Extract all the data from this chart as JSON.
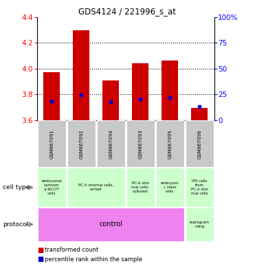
{
  "title": "GDS4124 / 221996_s_at",
  "samples": [
    "GSM867091",
    "GSM867092",
    "GSM867094",
    "GSM867093",
    "GSM867095",
    "GSM867096"
  ],
  "bar_bottoms": [
    3.6,
    3.6,
    3.6,
    3.6,
    3.6,
    3.6
  ],
  "bar_tops": [
    3.97,
    4.3,
    3.91,
    4.04,
    4.065,
    3.695
  ],
  "blue_dot_values": [
    3.75,
    3.795,
    3.745,
    3.765,
    3.775,
    3.705
  ],
  "ylim": [
    3.6,
    4.4
  ],
  "yticks_left": [
    3.6,
    3.8,
    4.0,
    4.2,
    4.4
  ],
  "yticks_right": [
    0,
    25,
    50,
    75,
    100
  ],
  "yticks_right_labels": [
    "0",
    "25",
    "50",
    "75",
    "100%"
  ],
  "grid_values": [
    3.8,
    4.0,
    4.2
  ],
  "bar_color": "#cc0000",
  "blue_color": "#0000cc",
  "protocol_label": "control",
  "protocol_label2": "reprogram\nming",
  "protocol_color": "#ee82ee",
  "reprogram_color": "#ccffcc",
  "cell_type_color": "#ccffcc",
  "sample_bg_color": "#c8c8c8",
  "legend_red": "transformed count",
  "legend_blue": "percentile rank within the sample",
  "ct_groups": [
    [
      0,
      1,
      "embryonal\ncarinom\na NCCIT\ncells"
    ],
    [
      1,
      3,
      "PC-A stromal cells,\nsorted"
    ],
    [
      3,
      4,
      "PC-A stro\nmal cells,\ncultured"
    ],
    [
      4,
      5,
      "embryoni\nc stem\ncells"
    ],
    [
      5,
      6,
      "IPS cells\nfrom\nPC-A stro\nmal cells"
    ]
  ]
}
